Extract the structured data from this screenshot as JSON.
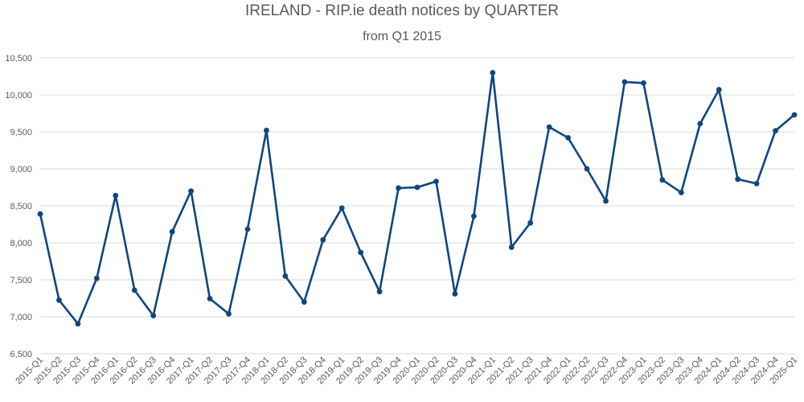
{
  "chart_data": {
    "type": "line",
    "title": "IRELAND - RIP.ie death notices by QUARTER",
    "subtitle": "from Q1 2015",
    "xlabel": "",
    "ylabel": "",
    "ylim": [
      6500,
      10500
    ],
    "yticks": [
      6500,
      7000,
      7500,
      8000,
      8500,
      9000,
      9500,
      10000,
      10500
    ],
    "ytick_labels": [
      "6,500",
      "7,000",
      "7,500",
      "8,000",
      "8,500",
      "9,000",
      "9,500",
      "10,000",
      "10,500"
    ],
    "grid": true,
    "legend": "none",
    "line_color": "#10467f",
    "categories": [
      "2015-Q1",
      "2015-Q2",
      "2015-Q3",
      "2015-Q4",
      "2016-Q1",
      "2016-Q2",
      "2016-Q3",
      "2016-Q4",
      "2017-Q1",
      "2017-Q2",
      "2017-Q3",
      "2017-Q4",
      "2018-Q1",
      "2018-Q2",
      "2018-Q3",
      "2018-Q4",
      "2019-Q1",
      "2019-Q2",
      "2019-Q3",
      "2019-Q4",
      "2020-Q1",
      "2020-Q2",
      "2020-Q3",
      "2020-Q4",
      "2021-Q1",
      "2021-Q2",
      "2021-Q3",
      "2021-Q4",
      "2022-Q1",
      "2022-Q2",
      "2022-Q3",
      "2022-Q4",
      "2023-Q1",
      "2023-Q2",
      "2023-Q3",
      "2023-Q4",
      "2024-Q1",
      "2024-Q2",
      "2024-Q3",
      "2024-Q4",
      "2025-Q1"
    ],
    "series": [
      {
        "values": [
          8390,
          7225,
          6905,
          7520,
          8640,
          7360,
          7015,
          8150,
          8700,
          7245,
          7040,
          8185,
          9520,
          7550,
          7200,
          8040,
          8470,
          7870,
          7340,
          8740,
          8750,
          8830,
          7310,
          8360,
          10300,
          7940,
          8270,
          9565,
          9420,
          9000,
          8565,
          10175,
          10160,
          8850,
          8680,
          9610,
          10070,
          8860,
          8800,
          9515,
          9730
        ]
      }
    ]
  }
}
